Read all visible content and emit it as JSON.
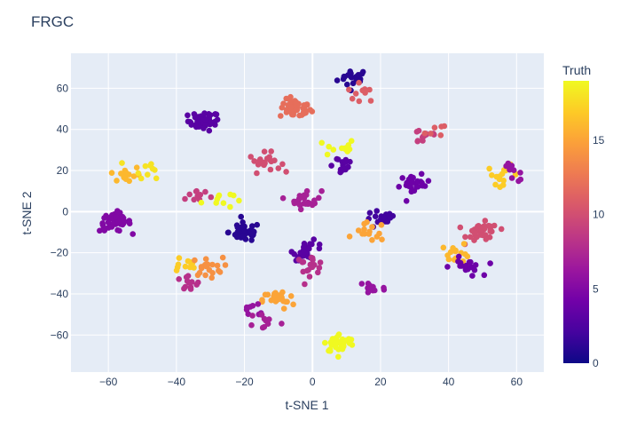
{
  "chart_data": {
    "type": "scatter",
    "title": "FRGC",
    "xlabel": "t-SNE 1",
    "ylabel": "t-SNE 2",
    "xlim": [
      -71,
      68
    ],
    "ylim": [
      -78,
      77
    ],
    "xticks": [
      -60,
      -40,
      -20,
      0,
      20,
      40,
      60
    ],
    "yticks": [
      -60,
      -40,
      -20,
      0,
      20,
      40,
      60
    ],
    "grid": true,
    "plot_bgcolor": "#e5ecf6",
    "colorbar": {
      "title": "Truth",
      "range": [
        0,
        19
      ],
      "ticks": [
        0,
        5,
        10,
        15
      ],
      "colorscale": [
        "#0d0887",
        "#46039f",
        "#7201a8",
        "#9c179e",
        "#bd3786",
        "#d8576b",
        "#ed7953",
        "#fb9f3a",
        "#fdca26",
        "#f0f921"
      ]
    },
    "clusters": [
      {
        "x": 12,
        "y": 65,
        "truth": 1,
        "n": 20
      },
      {
        "x": 14.5,
        "y": 58,
        "truth": 11,
        "n": 10
      },
      {
        "x": -32,
        "y": 44,
        "truth": 3,
        "n": 40
      },
      {
        "x": -5,
        "y": 50,
        "truth": 12,
        "n": 45
      },
      {
        "x": 8,
        "y": 31,
        "truth": 19,
        "n": 12
      },
      {
        "x": 8,
        "y": 23,
        "truth": 3,
        "n": 15
      },
      {
        "x": 33,
        "y": 37,
        "truth": 9,
        "n": 12
      },
      {
        "x": 38,
        "y": 40,
        "truth": 11,
        "n": 6
      },
      {
        "x": -55,
        "y": 18,
        "truth": 16,
        "n": 15
      },
      {
        "x": -48,
        "y": 21,
        "truth": 18,
        "n": 10
      },
      {
        "x": -14,
        "y": 24,
        "truth": 10,
        "n": 22
      },
      {
        "x": -34,
        "y": 8,
        "truth": 9,
        "n": 10
      },
      {
        "x": -28,
        "y": 6,
        "truth": 19,
        "n": 10
      },
      {
        "x": -2,
        "y": 6,
        "truth": 7,
        "n": 25
      },
      {
        "x": 30,
        "y": 13,
        "truth": 4,
        "n": 25
      },
      {
        "x": 56,
        "y": 18,
        "truth": 17,
        "n": 15
      },
      {
        "x": 59,
        "y": 19,
        "truth": 6,
        "n": 10
      },
      {
        "x": -58,
        "y": -5,
        "truth": 5,
        "n": 45
      },
      {
        "x": -20,
        "y": -10,
        "truth": 1,
        "n": 45
      },
      {
        "x": 20,
        "y": -4,
        "truth": 2,
        "n": 20
      },
      {
        "x": 17,
        "y": -10,
        "truth": 15,
        "n": 15
      },
      {
        "x": 50,
        "y": -10,
        "truth": 10,
        "n": 40
      },
      {
        "x": 42,
        "y": -20,
        "truth": 16,
        "n": 15
      },
      {
        "x": -1,
        "y": -19,
        "truth": 3,
        "n": 25
      },
      {
        "x": -1,
        "y": -26,
        "truth": 8,
        "n": 18
      },
      {
        "x": 45,
        "y": -27,
        "truth": 4,
        "n": 18
      },
      {
        "x": -38,
        "y": -26,
        "truth": 17,
        "n": 10
      },
      {
        "x": -31,
        "y": -27,
        "truth": 14,
        "n": 20
      },
      {
        "x": -37,
        "y": -35,
        "truth": 8,
        "n": 12
      },
      {
        "x": -10,
        "y": -43,
        "truth": 15,
        "n": 25
      },
      {
        "x": 17,
        "y": -37,
        "truth": 6,
        "n": 15
      },
      {
        "x": -17,
        "y": -48,
        "truth": 6,
        "n": 8
      },
      {
        "x": -14,
        "y": -53,
        "truth": 7,
        "n": 10
      },
      {
        "x": 8,
        "y": -64,
        "truth": 19,
        "n": 40
      }
    ]
  }
}
